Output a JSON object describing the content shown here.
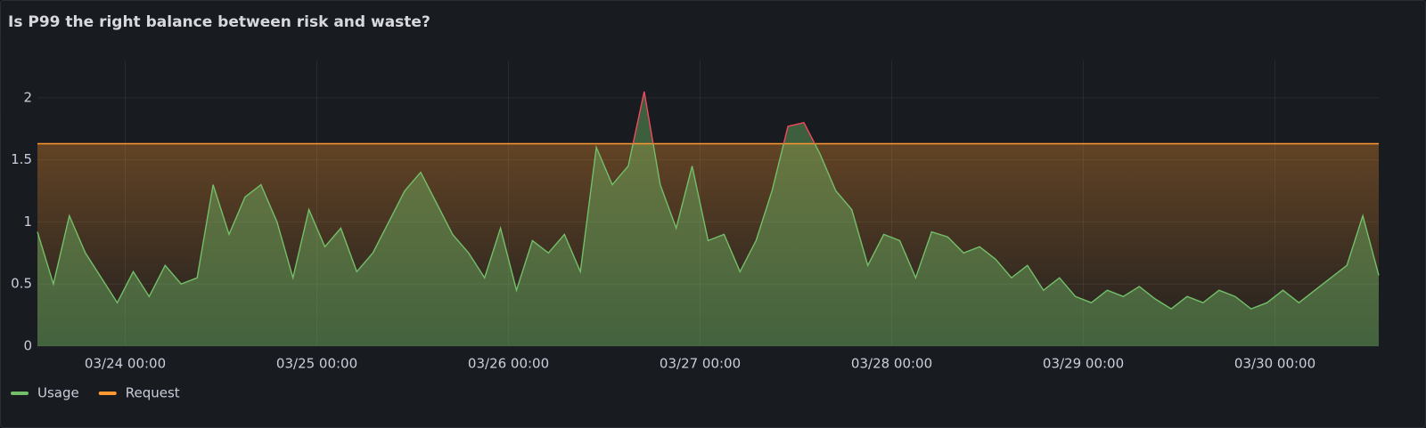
{
  "chart_data": {
    "type": "line",
    "title": "Is P99 the right balance between risk and waste?",
    "xlim": [
      "03/23 13:00",
      "03/30 13:00"
    ],
    "xticks": [
      "03/24 00:00",
      "03/25 00:00",
      "03/26 00:00",
      "03/27 00:00",
      "03/28 00:00",
      "03/29 00:00",
      "03/30 00:00"
    ],
    "ylim": [
      0,
      2.3
    ],
    "yticks": [
      0,
      0.5,
      1,
      1.5,
      2
    ],
    "grid": true,
    "legend": "bottom-left",
    "over_request_color": "#f2495c",
    "series": [
      {
        "name": "Usage",
        "color": "#73bf69",
        "x": [
          "03/23 13:00",
          "03/23 15:00",
          "03/23 17:00",
          "03/23 19:00",
          "03/23 21:00",
          "03/23 23:00",
          "03/24 01:00",
          "03/24 03:00",
          "03/24 05:00",
          "03/24 07:00",
          "03/24 09:00",
          "03/24 11:00",
          "03/24 13:00",
          "03/24 15:00",
          "03/24 17:00",
          "03/24 19:00",
          "03/24 21:00",
          "03/24 23:00",
          "03/25 01:00",
          "03/25 03:00",
          "03/25 05:00",
          "03/25 07:00",
          "03/25 09:00",
          "03/25 11:00",
          "03/25 13:00",
          "03/25 15:00",
          "03/25 17:00",
          "03/25 19:00",
          "03/25 21:00",
          "03/25 23:00",
          "03/26 01:00",
          "03/26 03:00",
          "03/26 05:00",
          "03/26 07:00",
          "03/26 09:00",
          "03/26 11:00",
          "03/26 13:00",
          "03/26 15:00",
          "03/26 17:00",
          "03/26 19:00",
          "03/26 21:00",
          "03/26 23:00",
          "03/27 01:00",
          "03/27 03:00",
          "03/27 05:00",
          "03/27 07:00",
          "03/27 09:00",
          "03/27 11:00",
          "03/27 13:00",
          "03/27 15:00",
          "03/27 17:00",
          "03/27 19:00",
          "03/27 21:00",
          "03/27 23:00",
          "03/28 01:00",
          "03/28 03:00",
          "03/28 05:00",
          "03/28 07:00",
          "03/28 09:00",
          "03/28 11:00",
          "03/28 13:00",
          "03/28 15:00",
          "03/28 17:00",
          "03/28 19:00",
          "03/28 21:00",
          "03/28 23:00",
          "03/29 01:00",
          "03/29 03:00",
          "03/29 05:00",
          "03/29 07:00",
          "03/29 09:00",
          "03/29 11:00",
          "03/29 13:00",
          "03/29 15:00",
          "03/29 17:00",
          "03/29 19:00",
          "03/29 21:00",
          "03/29 23:00",
          "03/30 01:00",
          "03/30 03:00",
          "03/30 05:00",
          "03/30 07:00",
          "03/30 09:00",
          "03/30 11:00",
          "03/30 13:00"
        ],
        "values": [
          0.92,
          0.5,
          1.05,
          0.75,
          0.55,
          0.35,
          0.6,
          0.4,
          0.65,
          0.5,
          0.55,
          1.3,
          0.9,
          1.2,
          1.3,
          1.0,
          0.55,
          1.1,
          0.8,
          0.95,
          0.6,
          0.75,
          1.0,
          1.25,
          1.4,
          1.15,
          0.9,
          0.75,
          0.55,
          0.95,
          0.45,
          0.85,
          0.75,
          0.9,
          0.6,
          1.6,
          1.3,
          1.45,
          2.05,
          1.3,
          0.95,
          1.45,
          0.85,
          0.9,
          0.6,
          0.85,
          1.25,
          1.77,
          1.8,
          1.55,
          1.25,
          1.1,
          0.65,
          0.9,
          0.85,
          0.55,
          0.92,
          0.88,
          0.75,
          0.8,
          0.7,
          0.55,
          0.65,
          0.45,
          0.55,
          0.4,
          0.35,
          0.45,
          0.4,
          0.48,
          0.38,
          0.3,
          0.4,
          0.35,
          0.45,
          0.4,
          0.3,
          0.35,
          0.45,
          0.35,
          0.45,
          0.55,
          0.65,
          1.05,
          0.57
        ]
      },
      {
        "name": "Request",
        "color": "#ff9830",
        "x": [
          "03/23 13:00",
          "03/30 13:00"
        ],
        "values": [
          1.63,
          1.63
        ]
      }
    ]
  }
}
